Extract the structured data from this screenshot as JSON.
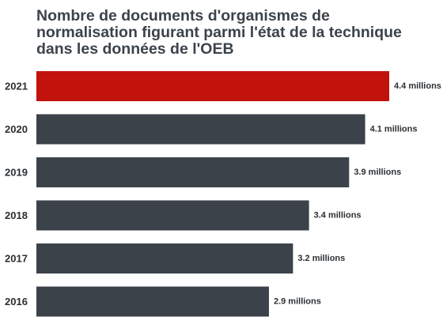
{
  "chart_data": {
    "type": "bar",
    "orientation": "horizontal",
    "title": "Nombre de documents d'organismes de normalisation figurant parmi l'état de la technique dans les données de l'OEB",
    "categories": [
      "2021",
      "2020",
      "2019",
      "2018",
      "2017",
      "2016"
    ],
    "values": [
      4.4,
      4.1,
      3.9,
      3.4,
      3.2,
      2.9
    ],
    "value_labels": [
      "4.4 millions",
      "4.1 millions",
      "3.9 millions",
      "3.4 millions",
      "3.2 millions",
      "2.9 millions"
    ],
    "highlight_category": "2021",
    "xlim": [
      0,
      4.4
    ],
    "grid": false,
    "colors": {
      "highlight": "#c2120c",
      "default": "#3c4249"
    }
  }
}
